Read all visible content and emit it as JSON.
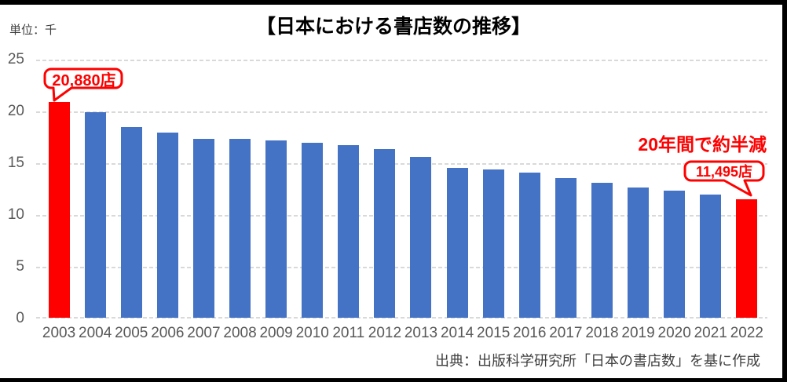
{
  "title": "【日本における書店数の推移】",
  "unit_label": "単位：千",
  "source_note": "出典：出版科学研究所「日本の書店数」を基に作成",
  "annotations": {
    "first_value_callout": "20,880店",
    "last_value_callout": "11,495店",
    "trend_note": "20年間で約半減"
  },
  "colors": {
    "bar_default": "#4472C4",
    "bar_highlight": "#FF0000",
    "annotation_red": "#FF0000",
    "gridline": "#D9D9D9",
    "axis_text": "#595959"
  },
  "chart_data": {
    "type": "bar",
    "title": "【日本における書店数の推移】",
    "unit": "単位：千 (thousands of stores)",
    "categories": [
      "2003",
      "2004",
      "2005",
      "2006",
      "2007",
      "2008",
      "2009",
      "2010",
      "2011",
      "2012",
      "2013",
      "2014",
      "2015",
      "2016",
      "2017",
      "2018",
      "2019",
      "2020",
      "2021",
      "2022"
    ],
    "values": [
      20.88,
      19.92,
      18.5,
      17.9,
      17.35,
      17.35,
      17.18,
      16.95,
      16.7,
      16.35,
      15.57,
      14.55,
      14.4,
      14.05,
      13.5,
      13.05,
      12.6,
      12.3,
      11.9,
      11.495
    ],
    "highlight_indices": [
      0,
      19
    ],
    "first_bar_label": "20,880店",
    "last_bar_label": "11,495店",
    "ylim": [
      0,
      25
    ],
    "yticks": [
      0,
      5,
      10,
      15,
      20,
      25
    ],
    "grid": true,
    "legend": false
  }
}
